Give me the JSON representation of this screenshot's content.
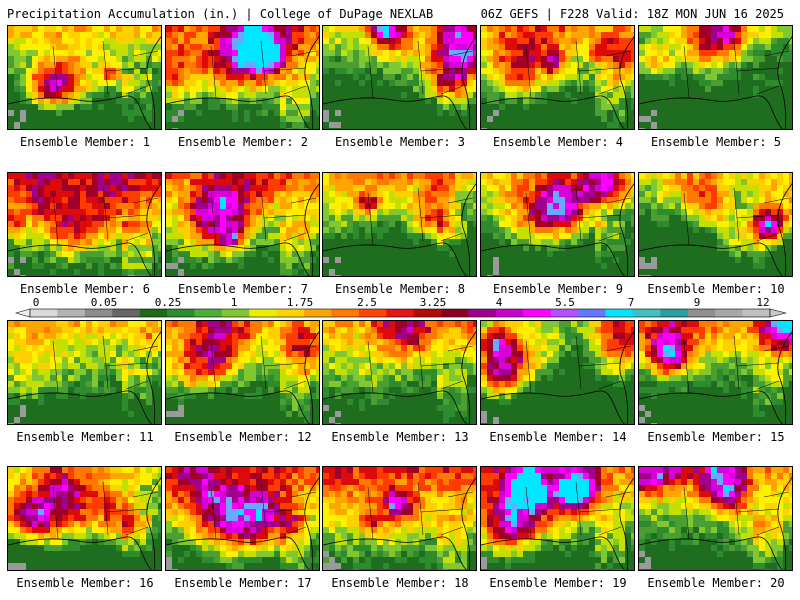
{
  "header": {
    "left": "Precipitation Accumulation (in.) | College of DuPage NEXLAB",
    "right": "06Z GEFS | F228 Valid: 18Z MON JUN 16 2025"
  },
  "members": [
    {
      "label": "Ensemble Member: 1"
    },
    {
      "label": "Ensemble Member: 2"
    },
    {
      "label": "Ensemble Member: 3"
    },
    {
      "label": "Ensemble Member: 4"
    },
    {
      "label": "Ensemble Member: 5"
    },
    {
      "label": "Ensemble Member: 6"
    },
    {
      "label": "Ensemble Member: 7"
    },
    {
      "label": "Ensemble Member: 8"
    },
    {
      "label": "Ensemble Member: 9"
    },
    {
      "label": "Ensemble Member: 10"
    },
    {
      "label": "Ensemble Member: 11"
    },
    {
      "label": "Ensemble Member: 12"
    },
    {
      "label": "Ensemble Member: 13"
    },
    {
      "label": "Ensemble Member: 14"
    },
    {
      "label": "Ensemble Member: 15"
    },
    {
      "label": "Ensemble Member: 16"
    },
    {
      "label": "Ensemble Member: 17"
    },
    {
      "label": "Ensemble Member: 18"
    },
    {
      "label": "Ensemble Member: 19"
    },
    {
      "label": "Ensemble Member: 20"
    }
  ],
  "colorbar": {
    "labels": [
      "0",
      "0.05",
      "0.25",
      "1",
      "1.75",
      "2.5",
      "3.25",
      "4",
      "5.5",
      "7",
      "9",
      "12"
    ],
    "colors": [
      "#d9d9d9",
      "#b3b3b3",
      "#8c8c8c",
      "#666666",
      "#1a6b1a",
      "#2e8b2e",
      "#4caf3c",
      "#7fc832",
      "#e8f000",
      "#ffd400",
      "#ffa500",
      "#ff7a00",
      "#ff4500",
      "#e61414",
      "#b40a0a",
      "#8c0028",
      "#a0008c",
      "#cc00cc",
      "#ff00ff",
      "#b450ff",
      "#6478ff",
      "#00e6ff",
      "#40c0c0",
      "#28a0a0",
      "#909090",
      "#a8a8a8",
      "#c0c0c0"
    ]
  }
}
